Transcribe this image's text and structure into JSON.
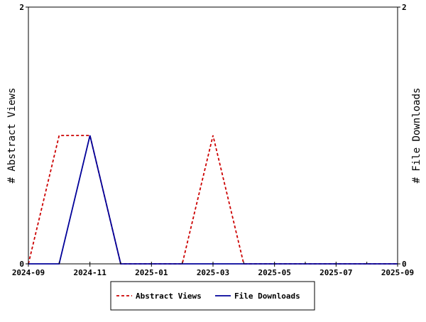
{
  "chart_data": {
    "type": "line",
    "x_axis": {
      "type": "date",
      "range": [
        "2024-09",
        "2025-09"
      ],
      "tick_labels": [
        "2024-09",
        "2024-11",
        "2025-01",
        "2025-03",
        "2025-05",
        "2025-07",
        "2025-09"
      ],
      "minor_ticks": "monthly"
    },
    "y_left": {
      "label": "# Abstract Views",
      "range": [
        0,
        2
      ],
      "tick_labels": [
        "0",
        "2"
      ]
    },
    "y_right": {
      "label": "# File Downloads",
      "range": [
        0,
        2
      ],
      "tick_labels": [
        "0",
        "2"
      ]
    },
    "grid": false,
    "legend": {
      "position": "bottom-center"
    },
    "series": [
      {
        "name": "Abstract Views",
        "axis": "left",
        "color": "#cc0000",
        "style": "dashed",
        "x": [
          "2024-09",
          "2024-10",
          "2024-11",
          "2024-12",
          "2025-01",
          "2025-02",
          "2025-03",
          "2025-04",
          "2025-05",
          "2025-06",
          "2025-07",
          "2025-08",
          "2025-09"
        ],
        "y": [
          0,
          1,
          1,
          0,
          0,
          0,
          1,
          0,
          0,
          0,
          0,
          0,
          0
        ]
      },
      {
        "name": "File Downloads",
        "axis": "right",
        "color": "#000099",
        "style": "solid",
        "x": [
          "2024-09",
          "2024-10",
          "2024-11",
          "2024-12",
          "2025-01",
          "2025-02",
          "2025-03",
          "2025-04",
          "2025-05",
          "2025-06",
          "2025-07",
          "2025-08",
          "2025-09"
        ],
        "y": [
          0,
          0,
          1,
          0,
          0,
          0,
          0,
          0,
          0,
          0,
          0,
          0,
          0
        ]
      }
    ]
  }
}
